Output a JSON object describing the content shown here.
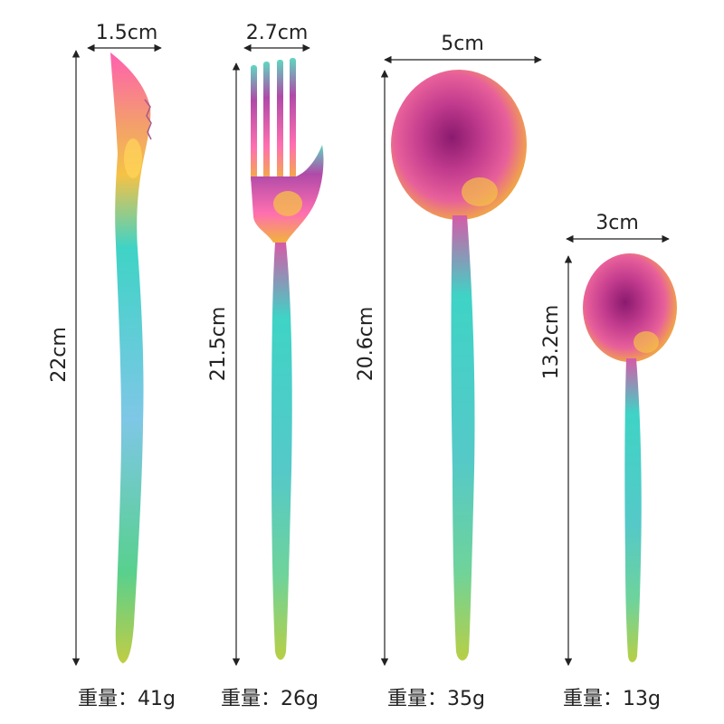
{
  "items": [
    {
      "name": "knife",
      "width": "1.5cm",
      "length": "22cm",
      "weight": "重量：41g"
    },
    {
      "name": "fork",
      "width": "2.7cm",
      "length": "21.5cm",
      "weight": "重量：26g"
    },
    {
      "name": "spoon",
      "width": "5cm",
      "length": "20.6cm",
      "weight": "重量：35g"
    },
    {
      "name": "small-spoon",
      "width": "3cm",
      "length": "13.2cm",
      "weight": "重量：13g"
    }
  ],
  "colors": {
    "handle_top": "#3fd3c6",
    "handle_bottom": "#8fd14a",
    "head_pink": "#e0509c",
    "head_purple": "#7a1f6a",
    "head_gold": "#f2b33c",
    "dimension_line": "#222222"
  }
}
